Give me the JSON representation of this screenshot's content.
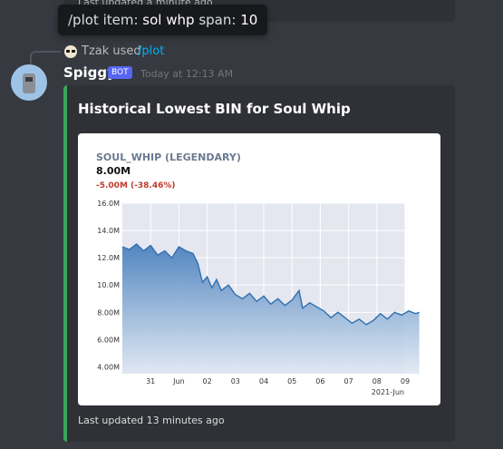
{
  "previous_message": {
    "embed_footer": "Last updated a minute ago"
  },
  "tooltip": {
    "prefix1": "/plot item:",
    "item_value": "sol whp",
    "prefix2": "span:",
    "span_value": "10"
  },
  "reply": {
    "user": "Tzak",
    "used_text": "used",
    "command": "/plot"
  },
  "message": {
    "author": "Spiggy",
    "badge": "BOT",
    "timestamp": "Today at 12:13 AM"
  },
  "embed": {
    "title": "Historical Lowest BIN for Soul Whip",
    "accent_color": "#3ba55c",
    "footer": "Last updated 13 minutes ago"
  },
  "chart_data": {
    "type": "area",
    "title": "SOUL_WHIP (LEGENDARY)",
    "current_value": "8.00M",
    "change": "-5.00M (-38.46%)",
    "x_ticks": [
      "31",
      "Jun",
      "02",
      "03",
      "04",
      "05",
      "06",
      "07",
      "08",
      "09"
    ],
    "x_subtitle": "2021-Jun",
    "y_ticks": [
      "4.00M",
      "6.00M",
      "8.00M",
      "10.0M",
      "12.0M",
      "14.0M",
      "16.0M"
    ],
    "ylim": [
      3.5,
      16.0
    ],
    "x_range": [
      "2021-05-30",
      "2021-06-09"
    ],
    "grid": true,
    "line_color": "#2f6fb0",
    "fill_color": "#5b8fc7",
    "change_color": "#c0392b",
    "series": [
      {
        "values": [
          [
            "2021-05-30T00:00",
            12.8
          ],
          [
            "2021-05-30T06:00",
            12.6
          ],
          [
            "2021-05-30T12:00",
            13.0
          ],
          [
            "2021-05-30T18:00",
            12.5
          ],
          [
            "2021-05-31T00:00",
            12.9
          ],
          [
            "2021-05-31T06:00",
            12.2
          ],
          [
            "2021-05-31T12:00",
            12.5
          ],
          [
            "2021-05-31T18:00",
            12.0
          ],
          [
            "2021-06-01T00:00",
            12.8
          ],
          [
            "2021-06-01T06:00",
            12.5
          ],
          [
            "2021-06-01T12:00",
            12.3
          ],
          [
            "2021-06-01T16:00",
            11.6
          ],
          [
            "2021-06-01T20:00",
            10.2
          ],
          [
            "2021-06-02T00:00",
            10.6
          ],
          [
            "2021-06-02T04:00",
            9.8
          ],
          [
            "2021-06-02T08:00",
            10.4
          ],
          [
            "2021-06-02T12:00",
            9.6
          ],
          [
            "2021-06-02T18:00",
            10.0
          ],
          [
            "2021-06-03T00:00",
            9.3
          ],
          [
            "2021-06-03T06:00",
            9.0
          ],
          [
            "2021-06-03T12:00",
            9.4
          ],
          [
            "2021-06-03T18:00",
            8.8
          ],
          [
            "2021-06-04T00:00",
            9.2
          ],
          [
            "2021-06-04T06:00",
            8.6
          ],
          [
            "2021-06-04T12:00",
            9.0
          ],
          [
            "2021-06-04T18:00",
            8.5
          ],
          [
            "2021-06-05T00:00",
            8.9
          ],
          [
            "2021-06-05T06:00",
            9.6
          ],
          [
            "2021-06-05T09:00",
            8.3
          ],
          [
            "2021-06-05T15:00",
            8.7
          ],
          [
            "2021-06-05T21:00",
            8.4
          ],
          [
            "2021-06-06T03:00",
            8.1
          ],
          [
            "2021-06-06T09:00",
            7.6
          ],
          [
            "2021-06-06T15:00",
            8.0
          ],
          [
            "2021-06-06T21:00",
            7.6
          ],
          [
            "2021-06-07T03:00",
            7.2
          ],
          [
            "2021-06-07T09:00",
            7.5
          ],
          [
            "2021-06-07T15:00",
            7.1
          ],
          [
            "2021-06-07T21:00",
            7.4
          ],
          [
            "2021-06-08T03:00",
            7.9
          ],
          [
            "2021-06-08T09:00",
            7.5
          ],
          [
            "2021-06-08T15:00",
            8.0
          ],
          [
            "2021-06-08T21:00",
            7.8
          ],
          [
            "2021-06-09T03:00",
            8.1
          ],
          [
            "2021-06-09T09:00",
            7.9
          ],
          [
            "2021-06-09T12:00",
            8.0
          ]
        ]
      }
    ]
  }
}
